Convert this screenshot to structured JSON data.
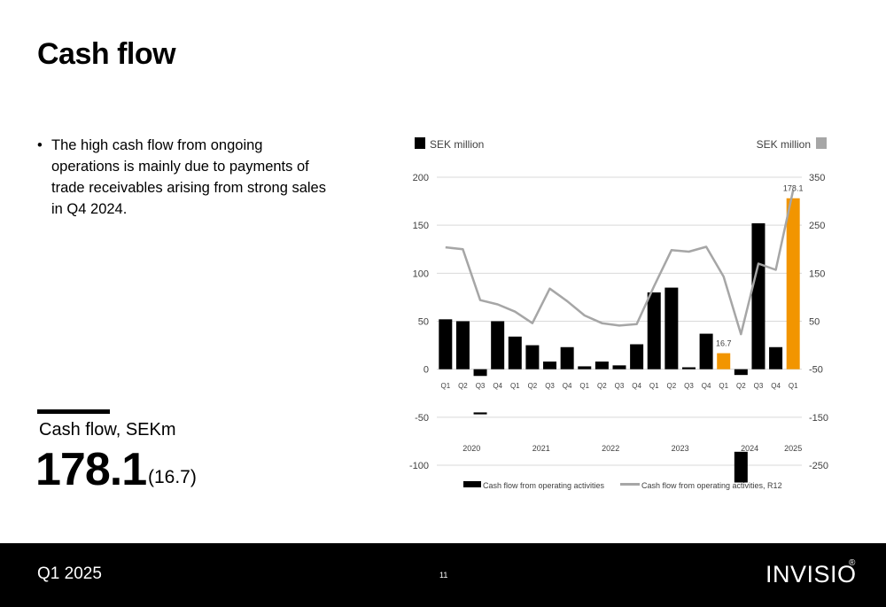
{
  "slide": {
    "title": "Cash flow",
    "bullet": "The high cash flow from ongoing operations is mainly due to payments of trade receivables arising from strong sales in Q4 2024.",
    "kpi_label": "Cash flow, SEKm",
    "kpi_value": "178.1",
    "kpi_previous": "(16.7)"
  },
  "footer": {
    "quarter": "Q1 2025",
    "page_number": "11",
    "logo": "INVISIO",
    "logo_mark": "®"
  },
  "chart_data": {
    "type": "bar",
    "left_axis_label": "SEK million",
    "right_axis_label": "SEK million",
    "categories": [
      "Q1",
      "Q2",
      "Q3",
      "Q4",
      "Q1",
      "Q2",
      "Q3",
      "Q4",
      "Q1",
      "Q2",
      "Q3",
      "Q4",
      "Q1",
      "Q2",
      "Q3",
      "Q4",
      "Q1",
      "Q2",
      "Q3",
      "Q4",
      "Q1"
    ],
    "years": [
      {
        "label": "2020",
        "from": 0,
        "to": 3
      },
      {
        "label": "2021",
        "from": 4,
        "to": 7
      },
      {
        "label": "2022",
        "from": 8,
        "to": 11
      },
      {
        "label": "2023",
        "from": 12,
        "to": 15
      },
      {
        "label": "2024",
        "from": 16,
        "to": 19
      },
      {
        "label": "2025",
        "from": 20,
        "to": 20
      }
    ],
    "ylim_left": [
      -100,
      200
    ],
    "yticks_left": [
      -100,
      -50,
      0,
      50,
      100,
      150,
      200
    ],
    "ylim_right": [
      -250,
      350
    ],
    "yticks_right": [
      -250,
      -150,
      -50,
      50,
      150,
      250,
      350
    ],
    "series": [
      {
        "name": "Cash flow from operating activities",
        "kind": "bar",
        "axis": "left",
        "color": "#000000",
        "highlight_color": "#f29500",
        "highlight_indices": [
          16,
          20
        ],
        "values": [
          52,
          50,
          -7,
          50,
          34,
          25,
          8,
          23,
          3,
          8,
          4,
          26,
          80,
          85,
          2,
          37,
          16.7,
          -6,
          152,
          23,
          178.1
        ]
      },
      {
        "name": "Cash flow from operating activities, R12",
        "kind": "line",
        "axis": "right",
        "color": "#a6a6a6",
        "values": [
          204,
          200,
          94,
          85,
          70,
          46,
          118,
          92,
          62,
          46,
          41,
          44,
          123,
          198,
          195,
          205,
          143,
          23,
          170,
          157,
          323
        ]
      }
    ],
    "lower_segments": [
      {
        "index": 2,
        "from": -45,
        "to": -47
      },
      {
        "index": 17,
        "from": -118,
        "to": -86
      }
    ],
    "data_labels": [
      {
        "index": 16,
        "text": "16.7"
      },
      {
        "index": 20,
        "text": "178.1"
      }
    ],
    "grid": true,
    "legend_position": "bottom"
  }
}
